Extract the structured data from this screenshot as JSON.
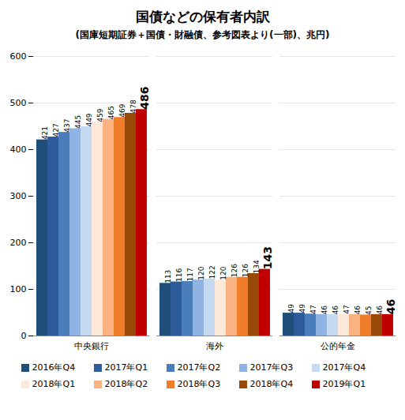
{
  "chart_data": {
    "type": "bar",
    "title": "国債などの保有者内訳",
    "subtitle": "(国庫短期証券＋国債・財融債、参考図表より(一部)、兆円)",
    "categories": [
      "中央銀行",
      "海外",
      "公的年金"
    ],
    "series": [
      {
        "name": "2016年Q4",
        "color": "#1f4e79",
        "values": [
          421,
          113,
          49
        ]
      },
      {
        "name": "2017年Q1",
        "color": "#2e5c9a",
        "values": [
          427,
          116,
          49
        ]
      },
      {
        "name": "2017年Q2",
        "color": "#4a7ebb",
        "values": [
          437,
          117,
          47
        ]
      },
      {
        "name": "2017年Q3",
        "color": "#8fb4e3",
        "values": [
          445,
          120,
          46
        ]
      },
      {
        "name": "2017年Q4",
        "color": "#c5d9f1",
        "values": [
          449,
          122,
          46
        ]
      },
      {
        "name": "2018年Q1",
        "color": "#fde9d9",
        "values": [
          459,
          120,
          47
        ]
      },
      {
        "name": "2018年Q2",
        "color": "#fab283",
        "values": [
          465,
          126,
          46
        ]
      },
      {
        "name": "2018年Q3",
        "color": "#f07d2a",
        "values": [
          469,
          126,
          45
        ]
      },
      {
        "name": "2018年Q4",
        "color": "#984807",
        "values": [
          478,
          134,
          46
        ]
      },
      {
        "name": "2019年Q1",
        "color": "#c00000",
        "values": [
          486,
          143,
          46
        ]
      }
    ],
    "ylim": [
      0,
      600
    ],
    "yticks": [
      0,
      100,
      200,
      300,
      400,
      500,
      600
    ],
    "grid": true,
    "legend": "bottom",
    "data_labels": true
  }
}
